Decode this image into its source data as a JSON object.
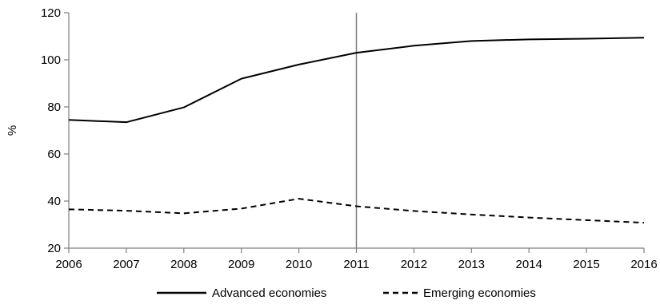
{
  "chart_data": {
    "type": "line",
    "title": "",
    "xlabel": "",
    "ylabel": "%",
    "x": [
      2006,
      2007,
      2008,
      2009,
      2010,
      2011,
      2012,
      2013,
      2014,
      2015,
      2016
    ],
    "xlim": [
      2006,
      2016
    ],
    "ylim": [
      20,
      120
    ],
    "yticks": [
      20,
      40,
      60,
      80,
      100,
      120
    ],
    "grid": false,
    "reference_line_x": 2011,
    "legend_position": "bottom",
    "series": [
      {
        "name": "Advanced economies",
        "style": "solid",
        "color": "#000000",
        "values": [
          74.5,
          73.5,
          79.8,
          92.0,
          98.0,
          103.0,
          106.0,
          108.0,
          108.7,
          109.0,
          109.4
        ]
      },
      {
        "name": "Emerging economies",
        "style": "dashed",
        "color": "#000000",
        "values": [
          36.5,
          35.9,
          34.8,
          36.8,
          41.0,
          37.8,
          35.8,
          34.3,
          33.0,
          31.9,
          30.8
        ]
      }
    ]
  }
}
